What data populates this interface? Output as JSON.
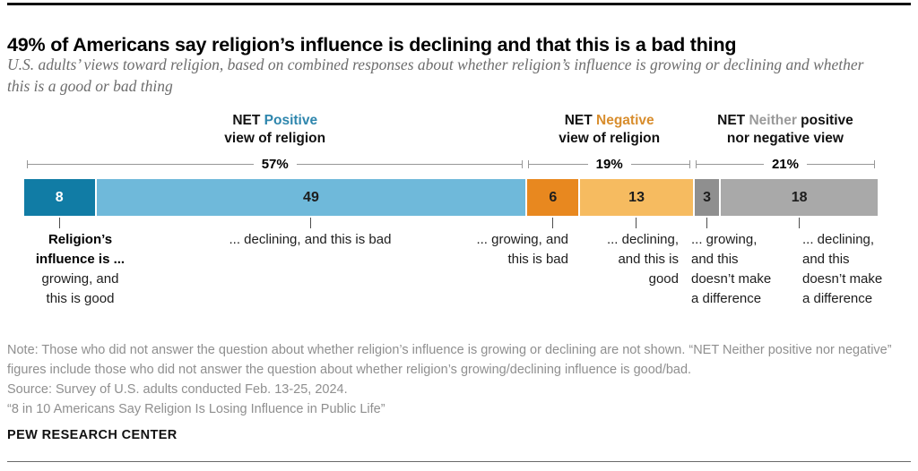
{
  "page": {
    "title": "49% of Americans say religion’s influence is declining and that this is a bad thing",
    "subtitle": "U.S. adults’ views toward religion, based on combined responses about whether religion’s influence is growing or declining and whether this is a good or bad thing",
    "footer": "PEW RESEARCH CENTER"
  },
  "notes": {
    "note": "Note: Those who did not answer the question about whether religion’s influence is growing or declining are not shown. “NET Neither positive nor negative” figures include those who did not answer the question about whether religion’s growing/declining influence is good/bad.",
    "source": "Source: Survey of U.S. adults conducted Feb. 13-25, 2024.",
    "report": "“8 in 10 Americans Say Religion Is Losing Influence in Public Life”"
  },
  "chart_data": {
    "type": "bar",
    "variant": "single-horizontal-stacked-bar",
    "units": "% of U.S. adults",
    "axis": "none",
    "groups": [
      {
        "prefix": "NET",
        "word": "Positive",
        "word_color": "#2e86ad",
        "suffix": "\nview of religion",
        "percent_label": "57%",
        "value": 57
      },
      {
        "prefix": "NET",
        "word": "Negative",
        "word_color": "#d88d2d",
        "suffix": "\nview of religion",
        "percent_label": "19%",
        "value": 19
      },
      {
        "prefix": "NET",
        "word": "Neither",
        "word_color": "#9a9a9a",
        "suffix": " positive\nnor negative view",
        "percent_label": "21%",
        "value": 21
      }
    ],
    "segments": [
      {
        "value": 8,
        "color": "#117ca5",
        "value_color": "#ffffff",
        "label_bold": "Religion’s\ninfluence is ...",
        "label": "growing, and\nthis is good"
      },
      {
        "value": 49,
        "color": "#6fb9da",
        "value_color": "#1d1d1d",
        "label": "... declining, and this is bad"
      },
      {
        "value": 6,
        "color": "#e8881f",
        "value_color": "#1d1d1d",
        "label": "... growing, and\nthis is bad"
      },
      {
        "value": 13,
        "color": "#f6bb60",
        "value_color": "#1d1d1d",
        "label": "... declining,\nand this is\ngood"
      },
      {
        "value": 3,
        "color": "#8f8f8f",
        "value_color": "#1d1d1d",
        "label": "... growing,\nand this\ndoesn’t make\na difference"
      },
      {
        "value": 18,
        "color": "#a9a9a9",
        "value_color": "#1d1d1d",
        "label": "... declining,\nand this\ndoesn’t make\na difference"
      }
    ]
  }
}
